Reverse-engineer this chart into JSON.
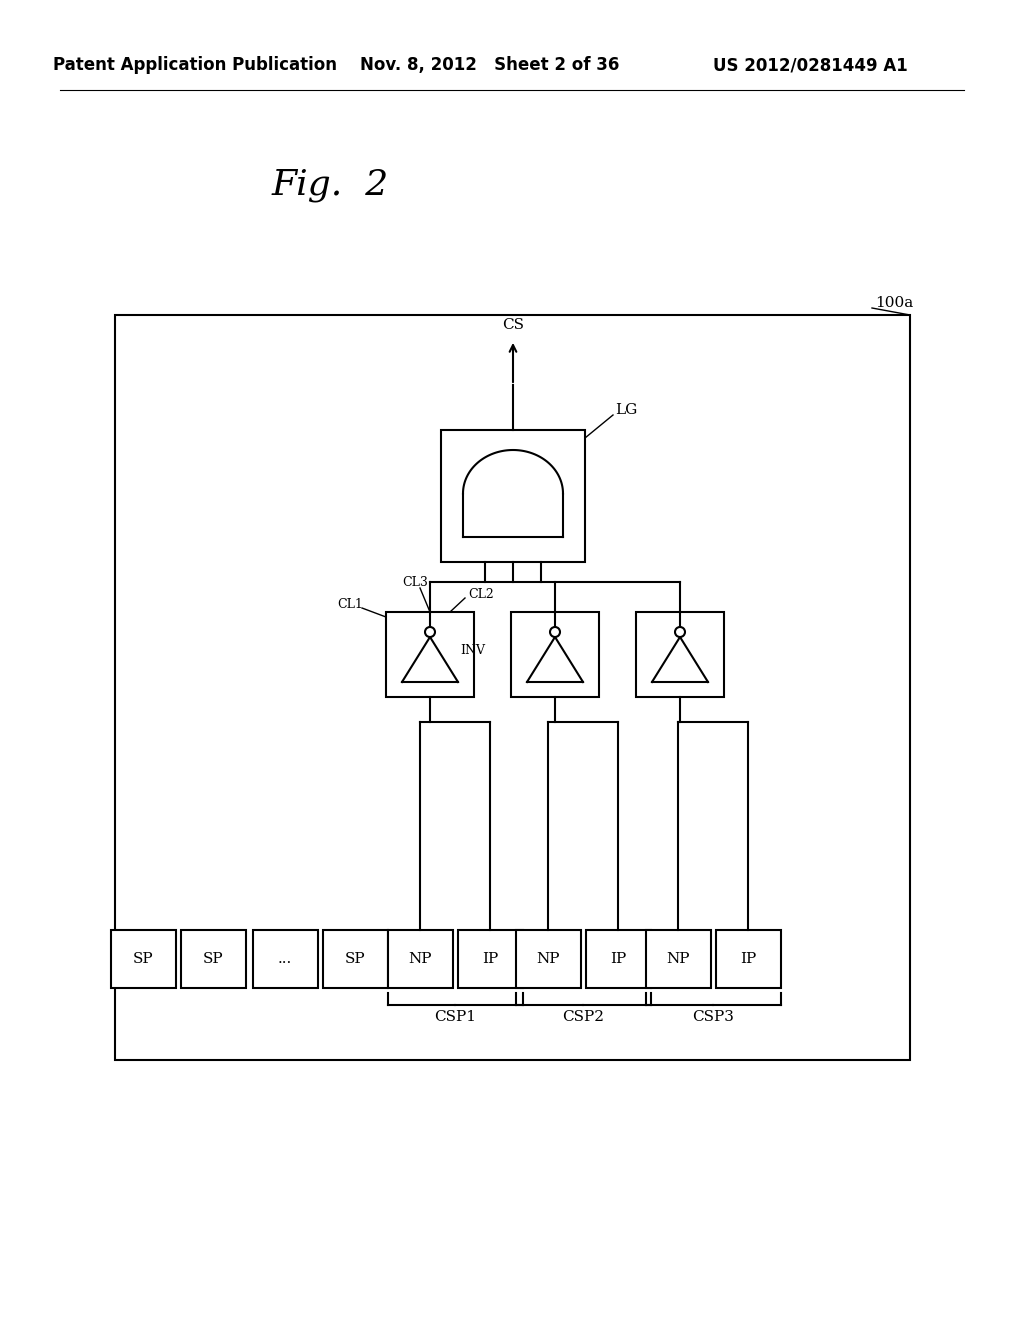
{
  "title": "Fig.  2",
  "header_left": "Patent Application Publication",
  "header_mid": "Nov. 8, 2012   Sheet 2 of 36",
  "header_right": "US 2012/0281449 A1",
  "bg_color": "#ffffff",
  "line_color": "#000000",
  "label_100a": "100a",
  "label_CS": "CS",
  "label_LG": "LG",
  "label_CL1": "CL1",
  "label_CL2": "CL2",
  "label_CL3": "CL3",
  "label_INV": "INV",
  "label_CSP1": "CSP1",
  "label_CSP2": "CSP2",
  "label_CSP3": "CSP3",
  "sp_labels": [
    "SP",
    "SP",
    "...",
    "SP"
  ],
  "bottom_labels": [
    "NP",
    "IP",
    "NP",
    "IP",
    "NP",
    "IP"
  ]
}
